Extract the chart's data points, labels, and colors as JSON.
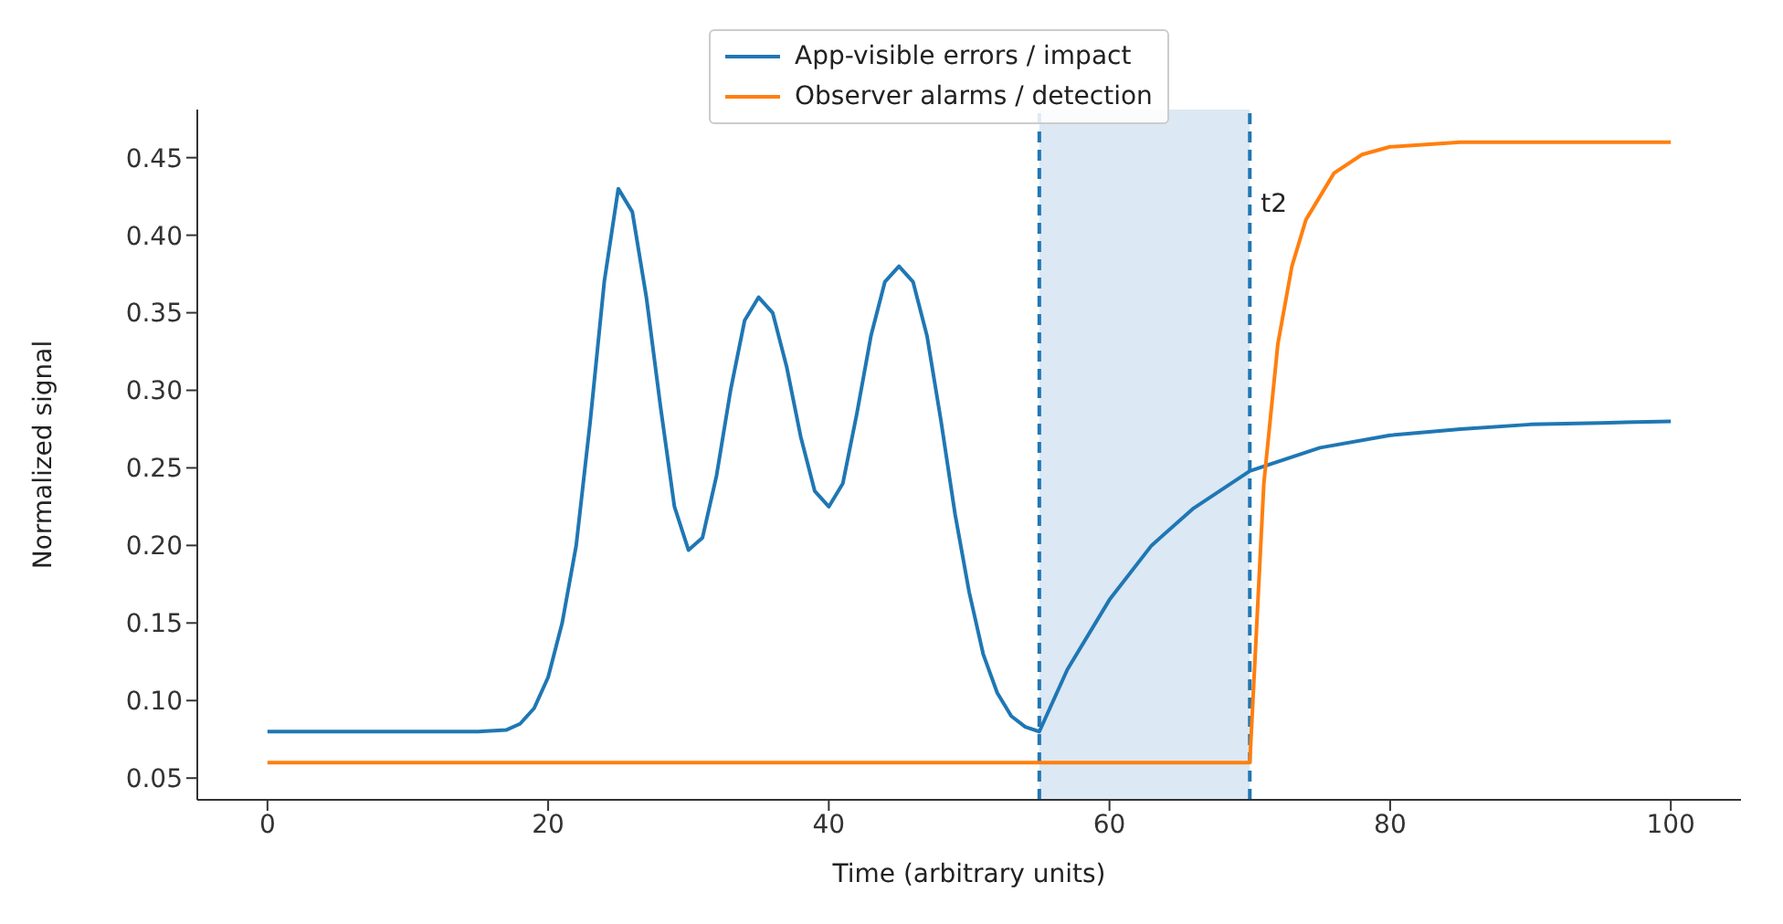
{
  "chart_data": {
    "type": "line",
    "xlabel": "Time (arbitrary units)",
    "ylabel": "Normalized signal",
    "xlim": [
      -5,
      105
    ],
    "xticks": [
      0,
      20,
      40,
      60,
      80,
      100
    ],
    "ylim": [
      0.036,
      0.481
    ],
    "yticks": [
      {
        "value": 0.05,
        "label": "0.05"
      },
      {
        "value": 0.1,
        "label": "0.10"
      },
      {
        "value": 0.15,
        "label": "0.15"
      },
      {
        "value": 0.2,
        "label": "0.20"
      },
      {
        "value": 0.25,
        "label": "0.25"
      },
      {
        "value": 0.3,
        "label": "0.30"
      },
      {
        "value": 0.35,
        "label": "0.35"
      },
      {
        "value": 0.4,
        "label": "0.40"
      },
      {
        "value": 0.45,
        "label": "0.45"
      }
    ],
    "grid": false,
    "legend": "top",
    "marker": "none",
    "line_style": "solid",
    "series": [
      {
        "name": "App-visible errors / impact",
        "color": "#1f77b4",
        "x": [
          0,
          15,
          17,
          18,
          19,
          20,
          21,
          22,
          23,
          24,
          25,
          26,
          27,
          28,
          29,
          30,
          31,
          32,
          33,
          34,
          35,
          36,
          37,
          38,
          39,
          40,
          41,
          42,
          43,
          44,
          45,
          46,
          47,
          48,
          49,
          50,
          51,
          52,
          53,
          54,
          55,
          57,
          60,
          63,
          66,
          70,
          75,
          80,
          85,
          90,
          95,
          100
        ],
        "values": [
          0.08,
          0.08,
          0.081,
          0.085,
          0.095,
          0.115,
          0.15,
          0.2,
          0.28,
          0.37,
          0.43,
          0.415,
          0.36,
          0.29,
          0.225,
          0.197,
          0.205,
          0.245,
          0.3,
          0.345,
          0.36,
          0.35,
          0.315,
          0.27,
          0.235,
          0.225,
          0.24,
          0.285,
          0.335,
          0.37,
          0.38,
          0.37,
          0.335,
          0.28,
          0.22,
          0.17,
          0.13,
          0.105,
          0.09,
          0.083,
          0.08,
          0.12,
          0.165,
          0.2,
          0.224,
          0.248,
          0.263,
          0.271,
          0.275,
          0.278,
          0.279,
          0.28
        ]
      },
      {
        "name": "Observer alarms / detection",
        "color": "#ff7f0e",
        "x": [
          0,
          70,
          70.5,
          71,
          72,
          73,
          74,
          76,
          78,
          80,
          85,
          100
        ],
        "values": [
          0.06,
          0.06,
          0.15,
          0.24,
          0.33,
          0.38,
          0.41,
          0.44,
          0.452,
          0.457,
          0.46,
          0.46
        ]
      }
    ],
    "bands": [
      {
        "axis": "x",
        "from": 55,
        "to": 70,
        "color": "#dce8f3"
      }
    ],
    "ref_lines": [
      {
        "axis": "x",
        "value": 55,
        "color": "#1f77b4",
        "line_style": "dashed"
      },
      {
        "axis": "x",
        "value": 70,
        "label": "t2",
        "color": "#1f77b4",
        "line_style": "dashed"
      }
    ]
  }
}
